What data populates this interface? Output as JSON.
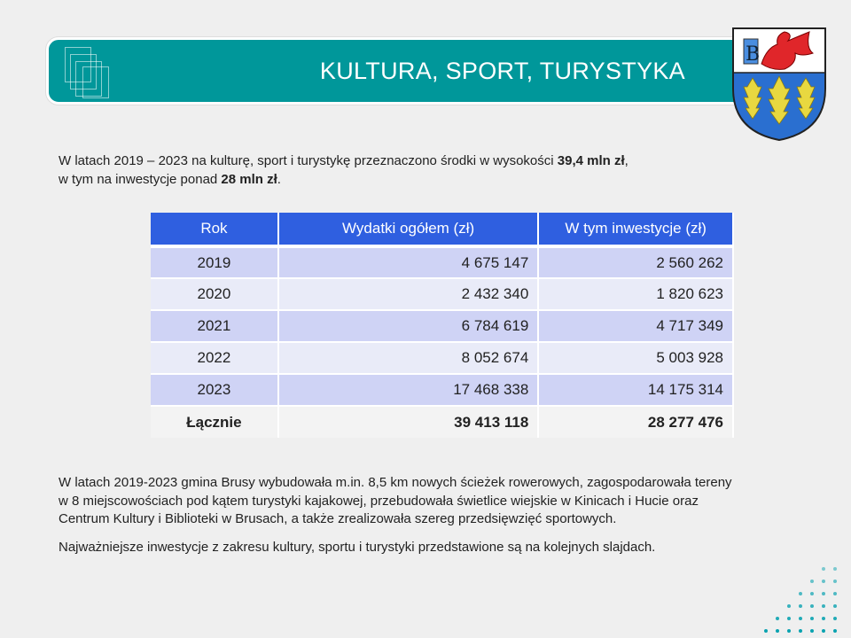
{
  "header": {
    "title": "KULTURA, SPORT, TURYSTYKA",
    "logo": "coat-of-arms-brusy"
  },
  "intro": {
    "line1_pre": "W latach 2019 – 2023 na kulturę, sport i turystykę przeznaczono środki w wysokości ",
    "line1_bold": "39,4 mln zł",
    "line1_post": ",",
    "line2_pre": "w tym na inwestycje ponad ",
    "line2_bold": "28 mln zł",
    "line2_post": "."
  },
  "table": {
    "headers": [
      "Rok",
      "Wydatki ogółem (zł)",
      "W tym inwestycje (zł)"
    ],
    "rows": [
      [
        "2019",
        "4 675 147",
        "2 560 262"
      ],
      [
        "2020",
        "2 432 340",
        "1 820 623"
      ],
      [
        "2021",
        "6 784 619",
        "4 717 349"
      ],
      [
        "2022",
        "8 052 674",
        "5 003 928"
      ],
      [
        "2023",
        "17 468 338",
        "14 175 314"
      ]
    ],
    "total": [
      "Łącznie",
      "39 413 118",
      "28 277 476"
    ]
  },
  "body": {
    "paragraph1": [
      "W latach 2019-2023 gmina Brusy wybudowała m.in. 8,5 km nowych ścieżek rowerowych, zagospodarowała tereny",
      "w 8 miejscowościach pod kątem turystyki kajakowej, przebudowała świetlice wiejskie w Kinicach i Hucie oraz",
      "Centrum Kultury i Biblioteki w Brusach, a także zrealizowała szereg przedsięwzięć sportowych."
    ],
    "paragraph2": "Najważniejsze inwestycje z zakresu kultury, sportu i turystyki przedstawione są na kolejnych slajdach."
  },
  "colors": {
    "banner": "#00979a",
    "table_header": "#2f5fe0",
    "row_dark": "#cfd3f5",
    "row_light": "#e9ebf8",
    "dots": "#0aa3b0"
  }
}
